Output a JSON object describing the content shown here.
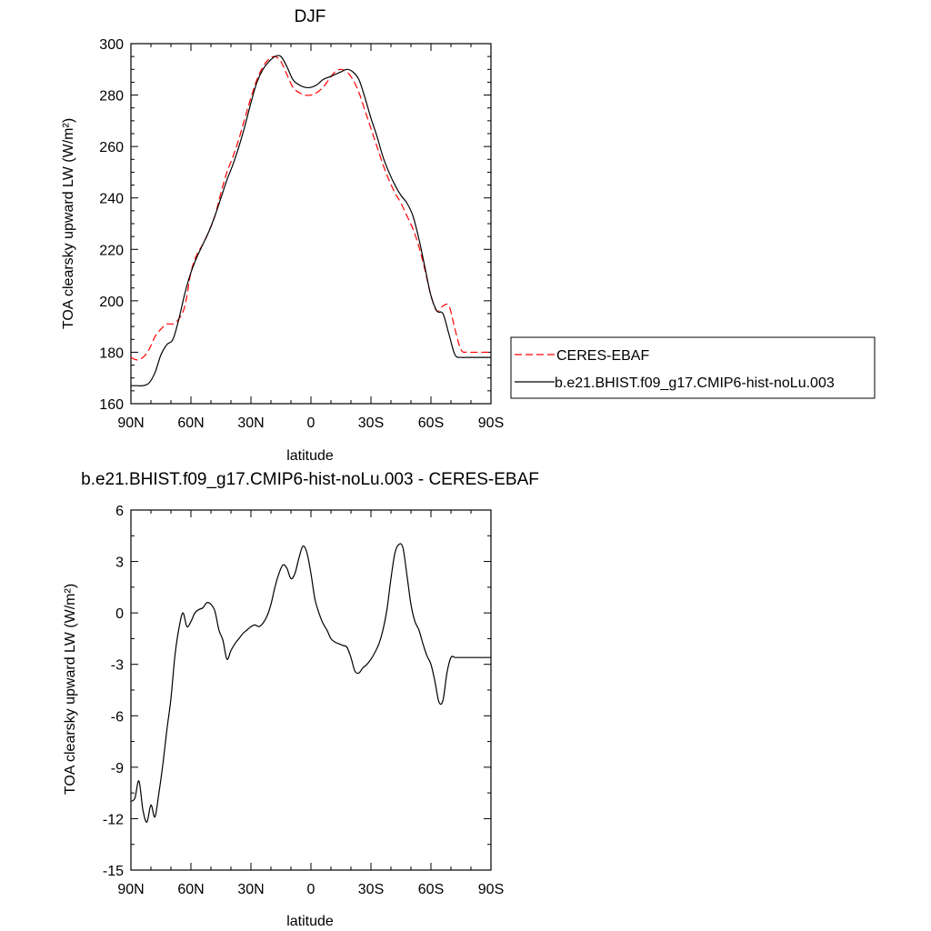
{
  "chart_data": [
    {
      "type": "line",
      "title": "DJF",
      "xlabel": "latitude",
      "ylabel": "TOA clearsky upward LW (W/m²)",
      "x_ticks": [
        "90N",
        "60N",
        "30N",
        "0",
        "30S",
        "60S",
        "90S"
      ],
      "x_tick_values": [
        -90,
        -60,
        -30,
        0,
        30,
        60,
        90
      ],
      "xlim": [
        -90,
        90
      ],
      "ylim": [
        160,
        300
      ],
      "y_ticks": [
        160,
        180,
        200,
        220,
        240,
        260,
        280,
        300
      ],
      "legend_position": "right",
      "series": [
        {
          "name": "CERES-EBAF",
          "color": "#ff0000",
          "dash": "dashed",
          "x": [
            -90,
            -87,
            -84,
            -81,
            -78,
            -75,
            -72,
            -69,
            -66,
            -63,
            -60,
            -57,
            -54,
            -51,
            -48,
            -45,
            -42,
            -39,
            -36,
            -33,
            -30,
            -27,
            -24,
            -21,
            -18,
            -15,
            -12,
            -9,
            -6,
            -3,
            0,
            3,
            6,
            9,
            12,
            15,
            18,
            21,
            24,
            27,
            30,
            33,
            36,
            39,
            42,
            45,
            48,
            51,
            54,
            57,
            60,
            63,
            66,
            69,
            72,
            75,
            78,
            81,
            84,
            87,
            90
          ],
          "y": [
            178,
            177,
            178,
            181,
            186,
            189,
            191,
            191,
            193,
            198,
            211,
            218,
            222,
            227,
            233,
            242,
            250,
            256,
            263,
            271,
            279,
            286,
            291,
            294,
            295,
            293,
            288,
            283,
            281,
            280,
            280,
            281,
            283,
            286,
            289,
            290,
            289,
            286,
            281,
            274,
            267,
            260,
            253,
            247,
            242,
            238,
            233,
            228,
            221,
            212,
            202,
            196,
            198,
            198,
            189,
            181,
            180,
            180,
            180,
            180,
            180
          ]
        },
        {
          "name": "b.e21.BHIST.f09_g17.CMIP6-hist-noLu.003",
          "color": "#000000",
          "dash": "solid",
          "x": [
            -90,
            -87,
            -84,
            -81,
            -78,
            -75,
            -72,
            -69,
            -66,
            -63,
            -60,
            -57,
            -54,
            -51,
            -48,
            -45,
            -42,
            -39,
            -36,
            -33,
            -30,
            -27,
            -24,
            -21,
            -18,
            -15,
            -12,
            -9,
            -6,
            -3,
            0,
            3,
            6,
            9,
            12,
            15,
            18,
            21,
            24,
            27,
            30,
            33,
            36,
            39,
            42,
            45,
            48,
            51,
            54,
            57,
            60,
            63,
            66,
            69,
            72,
            75,
            78,
            81,
            84,
            87,
            90
          ],
          "y": [
            167,
            167,
            167,
            168,
            172,
            179,
            183,
            185,
            193,
            203,
            211,
            217,
            222,
            227,
            233,
            240,
            247,
            253,
            260,
            268,
            277,
            285,
            290,
            293,
            295,
            295,
            291,
            286,
            284,
            283,
            283,
            284,
            286,
            287,
            288,
            289,
            290,
            289,
            286,
            279,
            271,
            264,
            256,
            250,
            245,
            241,
            238,
            233,
            224,
            213,
            202,
            196,
            195,
            187,
            179,
            178,
            178,
            178,
            178,
            178,
            178
          ]
        }
      ]
    },
    {
      "type": "line",
      "title": "b.e21.BHIST.f09_g17.CMIP6-hist-noLu.003 - CERES-EBAF",
      "xlabel": "latitude",
      "ylabel": "TOA clearsky upward LW (W/m²)",
      "x_ticks": [
        "90N",
        "60N",
        "30N",
        "0",
        "30S",
        "60S",
        "90S"
      ],
      "x_tick_values": [
        -90,
        -60,
        -30,
        0,
        30,
        60,
        90
      ],
      "xlim": [
        -90,
        90
      ],
      "ylim": [
        -15,
        6
      ],
      "y_ticks": [
        -15,
        -12,
        -9,
        -6,
        -3,
        0,
        3,
        6
      ],
      "series": [
        {
          "color": "#000000",
          "dash": "solid",
          "x": [
            -90,
            -88,
            -86,
            -84,
            -82,
            -80,
            -78,
            -76,
            -74,
            -72,
            -70,
            -68,
            -66,
            -64,
            -62,
            -60,
            -58,
            -56,
            -54,
            -52,
            -50,
            -48,
            -46,
            -44,
            -42,
            -40,
            -38,
            -36,
            -34,
            -32,
            -30,
            -28,
            -26,
            -24,
            -22,
            -20,
            -18,
            -16,
            -14,
            -12,
            -10,
            -8,
            -6,
            -4,
            -2,
            0,
            2,
            4,
            6,
            8,
            10,
            12,
            14,
            16,
            18,
            20,
            22,
            24,
            26,
            28,
            30,
            32,
            34,
            36,
            38,
            40,
            42,
            44,
            46,
            48,
            50,
            52,
            54,
            56,
            58,
            60,
            62,
            64,
            66,
            68,
            70,
            72,
            74,
            76,
            78,
            80,
            82,
            84,
            86,
            88,
            90
          ],
          "y": [
            -11.0,
            -10.8,
            -9.8,
            -11.5,
            -12.2,
            -11.2,
            -11.9,
            -10.5,
            -8.8,
            -6.8,
            -5.0,
            -2.5,
            -0.9,
            0.0,
            -0.8,
            -0.5,
            0.0,
            0.2,
            0.3,
            0.6,
            0.5,
            0.1,
            -1.0,
            -1.6,
            -2.7,
            -2.2,
            -1.8,
            -1.5,
            -1.2,
            -1.0,
            -0.8,
            -0.7,
            -0.8,
            -0.6,
            -0.2,
            0.5,
            1.5,
            2.3,
            2.8,
            2.6,
            2.0,
            2.3,
            3.2,
            3.9,
            3.5,
            2.3,
            0.8,
            0.0,
            -0.6,
            -1.0,
            -1.5,
            -1.7,
            -1.8,
            -1.9,
            -2.0,
            -2.6,
            -3.4,
            -3.5,
            -3.2,
            -3.0,
            -2.7,
            -2.3,
            -1.8,
            -1.0,
            0.2,
            2.0,
            3.5,
            4.0,
            3.8,
            2.2,
            0.5,
            -0.5,
            -1.0,
            -1.8,
            -2.5,
            -3.0,
            -4.0,
            -5.2,
            -5.1,
            -3.5,
            -2.6,
            -2.6,
            -2.6,
            -2.6,
            -2.6,
            -2.6,
            -2.6,
            -2.6,
            -2.6,
            -2.6,
            -2.6
          ]
        }
      ]
    }
  ]
}
